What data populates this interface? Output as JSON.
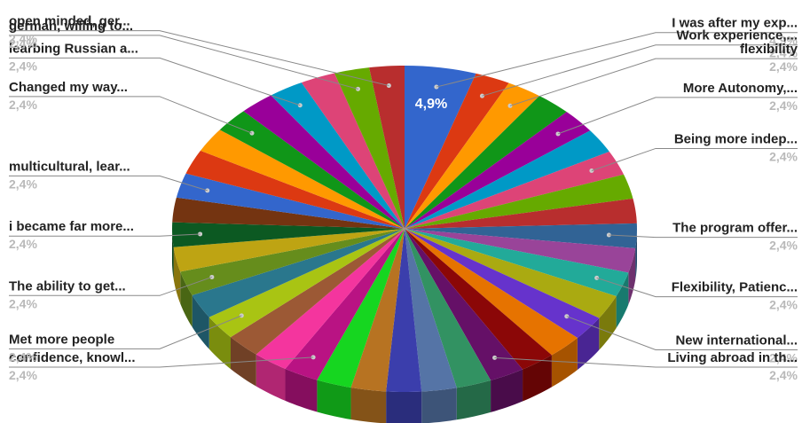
{
  "chart_data": {
    "type": "pie",
    "style": "3d",
    "inside_label": "4,9%",
    "slices": [
      {
        "name": "I was after my exp...",
        "label": "4,9%",
        "value": 4.9,
        "color": "#3366cc"
      },
      {
        "name": "Work experience,...",
        "label": "2,4%",
        "value": 2.4,
        "color": "#dc3912"
      },
      {
        "name": "flexibility",
        "label": "2,4%",
        "value": 2.4,
        "color": "#ff9900"
      },
      {
        "name": "",
        "label": "",
        "value": 2.4,
        "color": "#109618"
      },
      {
        "name": "More Autonomy,...",
        "label": "2,4%",
        "value": 2.4,
        "color": "#990099"
      },
      {
        "name": "",
        "label": "",
        "value": 2.4,
        "color": "#0099c6"
      },
      {
        "name": "Being more indep...",
        "label": "2,4%",
        "value": 2.4,
        "color": "#dd4477"
      },
      {
        "name": "",
        "label": "",
        "value": 2.4,
        "color": "#66aa00"
      },
      {
        "name": "",
        "label": "",
        "value": 2.4,
        "color": "#b82e2e"
      },
      {
        "name": "The program offer...",
        "label": "2,4%",
        "value": 2.4,
        "color": "#316395"
      },
      {
        "name": "",
        "label": "",
        "value": 2.4,
        "color": "#994499"
      },
      {
        "name": "Flexibility, Patienc...",
        "label": "2,4%",
        "value": 2.4,
        "color": "#22aa99"
      },
      {
        "name": "",
        "label": "",
        "value": 2.4,
        "color": "#aaaa11"
      },
      {
        "name": "New international...",
        "label": "2,4%",
        "value": 2.4,
        "color": "#6633cc"
      },
      {
        "name": "",
        "label": "",
        "value": 2.4,
        "color": "#e67300"
      },
      {
        "name": "",
        "label": "",
        "value": 2.4,
        "color": "#8b0707"
      },
      {
        "name": "Living abroad in th...",
        "label": "2,4%",
        "value": 2.4,
        "color": "#651067"
      },
      {
        "name": "",
        "label": "",
        "value": 2.4,
        "color": "#329262"
      },
      {
        "name": "",
        "label": "",
        "value": 2.4,
        "color": "#5574a6"
      },
      {
        "name": "",
        "label": "",
        "value": 2.4,
        "color": "#3b3eac"
      },
      {
        "name": "",
        "label": "",
        "value": 2.4,
        "color": "#b77322"
      },
      {
        "name": "",
        "label": "",
        "value": 2.4,
        "color": "#16d620"
      },
      {
        "name": "confidence, knowl...",
        "label": "2,4%",
        "value": 2.4,
        "color": "#b91383"
      },
      {
        "name": "",
        "label": "",
        "value": 2.4,
        "color": "#f4359e"
      },
      {
        "name": "",
        "label": "",
        "value": 2.4,
        "color": "#9c5935"
      },
      {
        "name": "Met more people",
        "label": "2,4%",
        "value": 2.4,
        "color": "#a9c413"
      },
      {
        "name": "",
        "label": "",
        "value": 2.4,
        "color": "#2a778d"
      },
      {
        "name": "The ability to get...",
        "label": "2,4%",
        "value": 2.4,
        "color": "#668d1c"
      },
      {
        "name": "",
        "label": "",
        "value": 2.4,
        "color": "#bea413"
      },
      {
        "name": "i became far more...",
        "label": "2,4%",
        "value": 2.4,
        "color": "#0c5922"
      },
      {
        "name": "",
        "label": "",
        "value": 2.4,
        "color": "#743411"
      },
      {
        "name": "multicultural, lear...",
        "label": "2,4%",
        "value": 2.4,
        "color": "#3366cc"
      },
      {
        "name": "",
        "label": "",
        "value": 2.4,
        "color": "#dc3912"
      },
      {
        "name": "",
        "label": "",
        "value": 2.4,
        "color": "#ff9900"
      },
      {
        "name": "Changed my way...",
        "label": "2,4%",
        "value": 2.4,
        "color": "#109618"
      },
      {
        "name": "",
        "label": "",
        "value": 2.4,
        "color": "#990099"
      },
      {
        "name": "learbing Russian a...",
        "label": "2,4%",
        "value": 2.4,
        "color": "#0099c6"
      },
      {
        "name": "",
        "label": "",
        "value": 2.4,
        "color": "#dd4477"
      },
      {
        "name": "german, willing to...",
        "label": "2,4%",
        "value": 2.4,
        "color": "#66aa00"
      },
      {
        "name": "open minded, ger...",
        "label": "2,4%",
        "value": 2.4,
        "color": "#b82e2e"
      }
    ]
  }
}
